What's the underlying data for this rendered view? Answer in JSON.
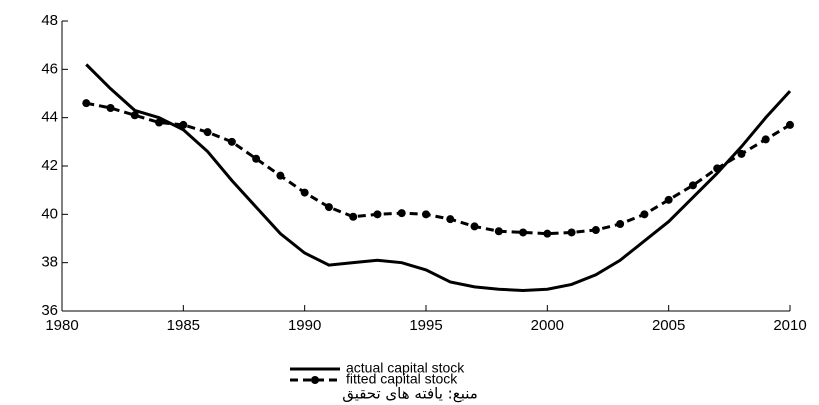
{
  "chart_data": {
    "type": "line",
    "x": [
      1981,
      1982,
      1983,
      1984,
      1985,
      1986,
      1987,
      1988,
      1989,
      1990,
      1991,
      1992,
      1993,
      1994,
      1995,
      1996,
      1997,
      1998,
      1999,
      2000,
      2001,
      2002,
      2003,
      2004,
      2005,
      2006,
      2007,
      2008,
      2009,
      2010
    ],
    "series": [
      {
        "name": "actual capital stock",
        "color": "#000000",
        "dashed": false,
        "markers": false,
        "values": [
          46.2,
          45.2,
          44.3,
          44.0,
          43.5,
          42.6,
          41.4,
          40.3,
          39.2,
          38.4,
          37.9,
          38.0,
          38.1,
          38.0,
          37.7,
          37.2,
          37.0,
          36.9,
          36.85,
          36.9,
          37.1,
          37.5,
          38.1,
          38.9,
          39.7,
          40.7,
          41.7,
          42.8,
          44.0,
          45.1
        ]
      },
      {
        "name": "fitted capital stock",
        "color": "#000000",
        "dashed": true,
        "markers": true,
        "values": [
          44.6,
          44.4,
          44.1,
          43.8,
          43.7,
          43.4,
          43.0,
          42.3,
          41.6,
          40.9,
          40.3,
          39.9,
          40.0,
          40.05,
          40.0,
          39.8,
          39.5,
          39.3,
          39.25,
          39.2,
          39.25,
          39.35,
          39.6,
          40.0,
          40.6,
          41.2,
          41.9,
          42.5,
          43.1,
          43.7
        ]
      }
    ],
    "xlim": [
      1980,
      2010
    ],
    "xticks": [
      1980,
      1985,
      1990,
      1995,
      2000,
      2005,
      2010
    ],
    "ylim": [
      36,
      48
    ],
    "yticks": [
      36,
      38,
      40,
      42,
      44,
      46,
      48
    ],
    "source": "منبع: یافته های تحقیق"
  }
}
